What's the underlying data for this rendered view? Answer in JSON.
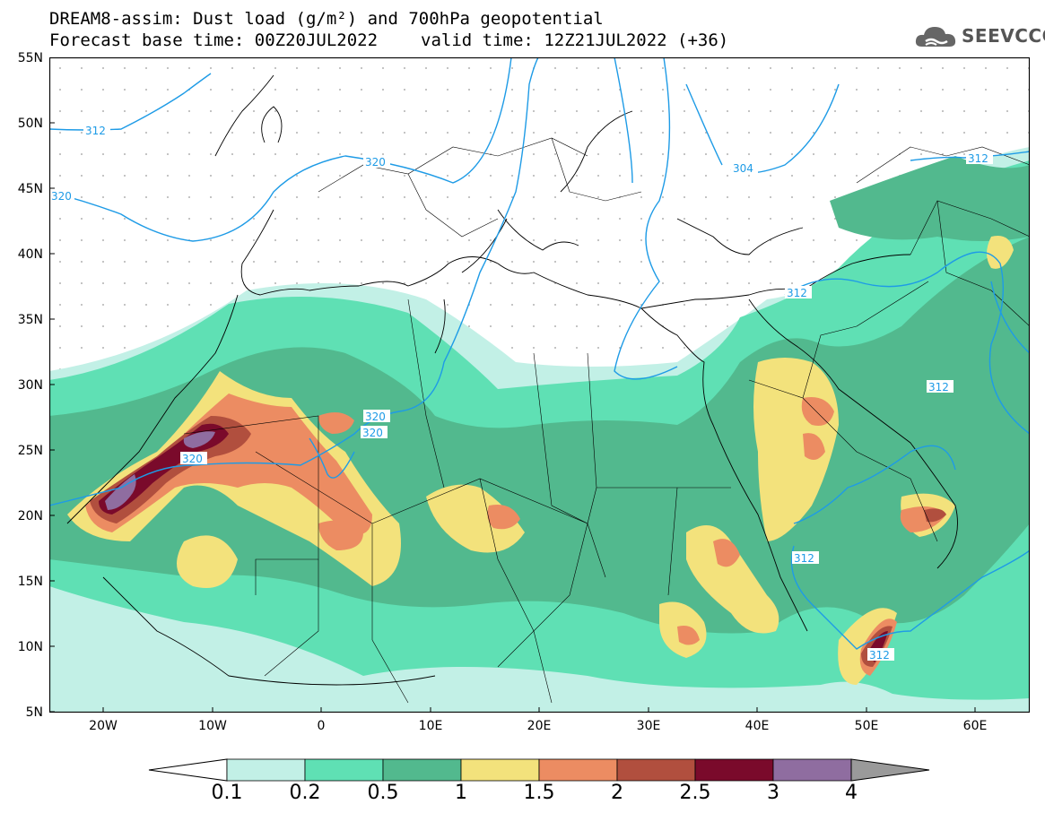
{
  "header": {
    "title_line1": "DREAM8-assim: Dust load (g/m²) and 700hPa geopotential",
    "base_time": "Forecast base time: 00Z20JUL2022",
    "valid_time": "valid time: 12Z21JUL2022 (+36)",
    "logo_text": "SEEVCCC"
  },
  "axes": {
    "lat_labels": [
      "55N",
      "50N",
      "45N",
      "40N",
      "35N",
      "30N",
      "25N",
      "20N",
      "15N",
      "10N",
      "5N"
    ],
    "lon_labels": [
      "20W",
      "10W",
      "0",
      "10E",
      "20E",
      "30E",
      "40E",
      "50E",
      "60E"
    ],
    "lat_range": [
      5,
      55
    ],
    "lon_range": [
      -25,
      65
    ]
  },
  "contours": {
    "color": "#1e9be6",
    "labels": [
      "312",
      "320",
      "320",
      "320",
      "320",
      "320",
      "304",
      "312",
      "312",
      "312",
      "312",
      "312"
    ]
  },
  "colorbar": {
    "ticks": [
      "0.1",
      "0.2",
      "0.5",
      "1",
      "1.5",
      "2",
      "2.5",
      "3",
      "4"
    ],
    "colors": [
      "#c2f0e6",
      "#5fe0b4",
      "#52b98e",
      "#f3e27c",
      "#ec8c62",
      "#b14f3e",
      "#7a0a2b",
      "#8f6da0"
    ],
    "low_arrow_color": "#ffffff",
    "high_arrow_color": "#9a9a9a"
  }
}
